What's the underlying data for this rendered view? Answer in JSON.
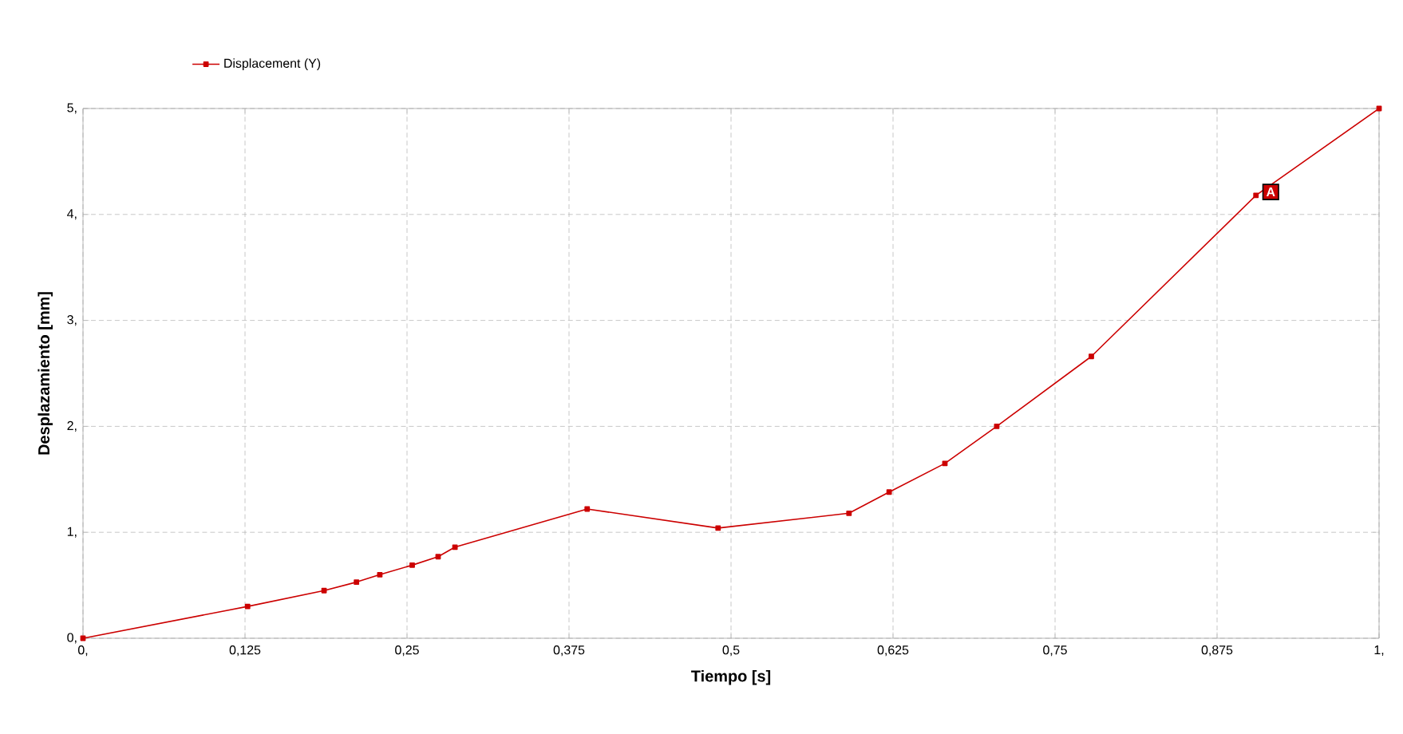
{
  "chart_data": {
    "type": "line",
    "xlabel": "Tiempo [s]",
    "ylabel": "Desplazamiento [mm]",
    "x": [
      0,
      0.127,
      0.186,
      0.211,
      0.229,
      0.254,
      0.274,
      0.287,
      0.389,
      0.49,
      0.591,
      0.622,
      0.665,
      0.705,
      0.778,
      0.905,
      1
    ],
    "series": [
      {
        "name": "Displacement (Y)",
        "color": "#cc0000",
        "values": [
          0,
          0.3,
          0.45,
          0.53,
          0.6,
          0.69,
          0.77,
          0.86,
          1.22,
          1.04,
          1.18,
          1.38,
          1.65,
          2.0,
          2.66,
          4.18,
          5
        ]
      }
    ],
    "xlim": [
      0,
      1
    ],
    "ylim": [
      0,
      5
    ],
    "xticks": [
      {
        "value": 0,
        "label": "0,"
      },
      {
        "value": 0.125,
        "label": "0,125"
      },
      {
        "value": 0.25,
        "label": "0,25"
      },
      {
        "value": 0.375,
        "label": "0,375"
      },
      {
        "value": 0.5,
        "label": "0,5"
      },
      {
        "value": 0.625,
        "label": "0,625"
      },
      {
        "value": 0.75,
        "label": "0,75"
      },
      {
        "value": 0.875,
        "label": "0,875"
      },
      {
        "value": 1,
        "label": "1,"
      }
    ],
    "yticks": [
      {
        "value": 0,
        "label": "0,"
      },
      {
        "value": 1,
        "label": "1,"
      },
      {
        "value": 2,
        "label": "2,"
      },
      {
        "value": 3,
        "label": "3,"
      },
      {
        "value": 4,
        "label": "4,"
      },
      {
        "value": 5,
        "label": "5,"
      }
    ],
    "annotations": [
      {
        "text": "A",
        "x": 0.905,
        "y": 4.18
      }
    ],
    "grid": true,
    "legend": "top left",
    "marker": "square",
    "line_style": "solid"
  }
}
